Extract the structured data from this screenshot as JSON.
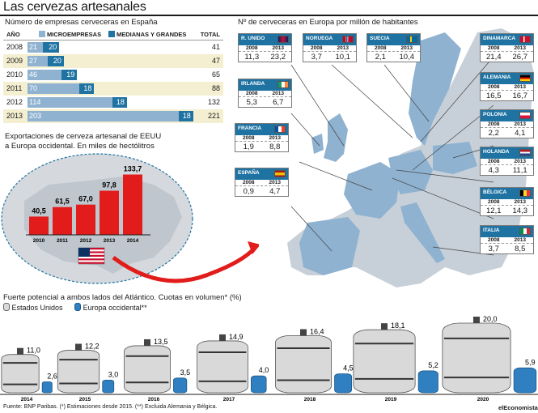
{
  "title": "Las cervezas artesanales",
  "spain": {
    "heading": "Número de empresas cerveceras en España",
    "col_year": "AÑO",
    "col_micro": "MICROEMPRESAS",
    "col_medium": "MEDIANAS Y GRANDES",
    "col_total": "TOTAL",
    "colors": {
      "micro": "#8fb2d0",
      "medium": "#1f73a3",
      "alt_row": "#f3efd0"
    },
    "rows": [
      {
        "year": "2008",
        "micro": "21",
        "medium": "20",
        "total": "41"
      },
      {
        "year": "2009",
        "micro": "27",
        "medium": "20",
        "total": "47"
      },
      {
        "year": "2010",
        "micro": "46",
        "medium": "19",
        "total": "65"
      },
      {
        "year": "2011",
        "micro": "70",
        "medium": "18",
        "total": "88"
      },
      {
        "year": "2012",
        "micro": "114",
        "medium": "18",
        "total": "132"
      },
      {
        "year": "2013",
        "micro": "203",
        "medium": "18",
        "total": "221"
      }
    ]
  },
  "exports": {
    "heading_line1": "Exportaciones de cerveza artesanal de EEUU",
    "heading_line2": "a Europa occidental. En miles de hectólitros",
    "bar_color": "#e21b1b"
  },
  "map": {
    "heading": "Nº de cerveceras en Europa por millón de habitantes",
    "year_a": "2008",
    "year_b": "2013",
    "countries": [
      {
        "name": "R. UNIDO",
        "v2008": "11,3",
        "v2013": "23,2"
      },
      {
        "name": "NORUEGA",
        "v2008": "3,7",
        "v2013": "10,1"
      },
      {
        "name": "SUECIA",
        "v2008": "2,1",
        "v2013": "10,4"
      },
      {
        "name": "DINAMARCA",
        "v2008": "21,4",
        "v2013": "26,7"
      },
      {
        "name": "IRLANDA",
        "v2008": "5,3",
        "v2013": "6,7"
      },
      {
        "name": "ALEMANIA",
        "v2008": "16,5",
        "v2013": "16,7"
      },
      {
        "name": "POLONIA",
        "v2008": "2,2",
        "v2013": "4,1"
      },
      {
        "name": "FRANCIA",
        "v2008": "1,9",
        "v2013": "8,8"
      },
      {
        "name": "HOLANDA",
        "v2008": "4,3",
        "v2013": "11,1"
      },
      {
        "name": "ESPAÑA",
        "v2008": "0,9",
        "v2013": "4,7"
      },
      {
        "name": "BÉLGICA",
        "v2008": "12,1",
        "v2013": "14,3"
      },
      {
        "name": "ITALIA",
        "v2008": "3,7",
        "v2013": "8,5"
      }
    ]
  },
  "share": {
    "heading": "Fuerte potencial a ambos lados del Atlántico. Cuotas en volumen* (%)",
    "legend_us": "Estados Unidos",
    "legend_eu": "Europa occidental**",
    "colors": {
      "us": "#d9d9d9",
      "eu": "#2f7fc1"
    }
  },
  "footer": "Fuente: BNP Paribas. (*) Estimaciones desde 2015. (**) Excluida Alemania y Bélgica.",
  "brand": "elEconomista",
  "chart_data": [
    {
      "type": "bar",
      "title": "Número de empresas cerveceras en España",
      "categories": [
        "2008",
        "2009",
        "2010",
        "2011",
        "2012",
        "2013"
      ],
      "series": [
        {
          "name": "MICROEMPRESAS",
          "values": [
            21,
            27,
            46,
            70,
            114,
            203
          ]
        },
        {
          "name": "MEDIANAS Y GRANDES",
          "values": [
            20,
            20,
            19,
            18,
            18,
            18
          ]
        }
      ],
      "totals": [
        41,
        47,
        65,
        88,
        132,
        221
      ]
    },
    {
      "type": "bar",
      "title": "Exportaciones de cerveza artesanal de EEUU a Europa occidental. En miles de hectólitros",
      "categories": [
        "2010",
        "2011",
        "2012",
        "2013",
        "2014"
      ],
      "values": [
        40.5,
        61.5,
        67.0,
        97.8,
        133.7
      ],
      "labels": [
        "40,5",
        "61,5",
        "67,0",
        "97,8",
        "133,7"
      ]
    },
    {
      "type": "bar",
      "title": "Fuerte potencial a ambos lados del Atlántico. Cuotas en volumen* (%)",
      "categories": [
        "2014",
        "2015",
        "2016",
        "2017",
        "2018",
        "2019",
        "2020"
      ],
      "series": [
        {
          "name": "Estados Unidos",
          "values": [
            11.0,
            12.2,
            13.5,
            14.9,
            16.4,
            18.1,
            20.0
          ],
          "labels": [
            "11,0",
            "12,2",
            "13,5",
            "14,9",
            "16,4",
            "18,1",
            "20,0"
          ]
        },
        {
          "name": "Europa occidental**",
          "values": [
            2.6,
            3.0,
            3.5,
            4.0,
            4.5,
            5.2,
            5.9
          ],
          "labels": [
            "2,6",
            "3,0",
            "3,5",
            "4,0",
            "4,5",
            "5,2",
            "5,9"
          ]
        }
      ]
    }
  ]
}
